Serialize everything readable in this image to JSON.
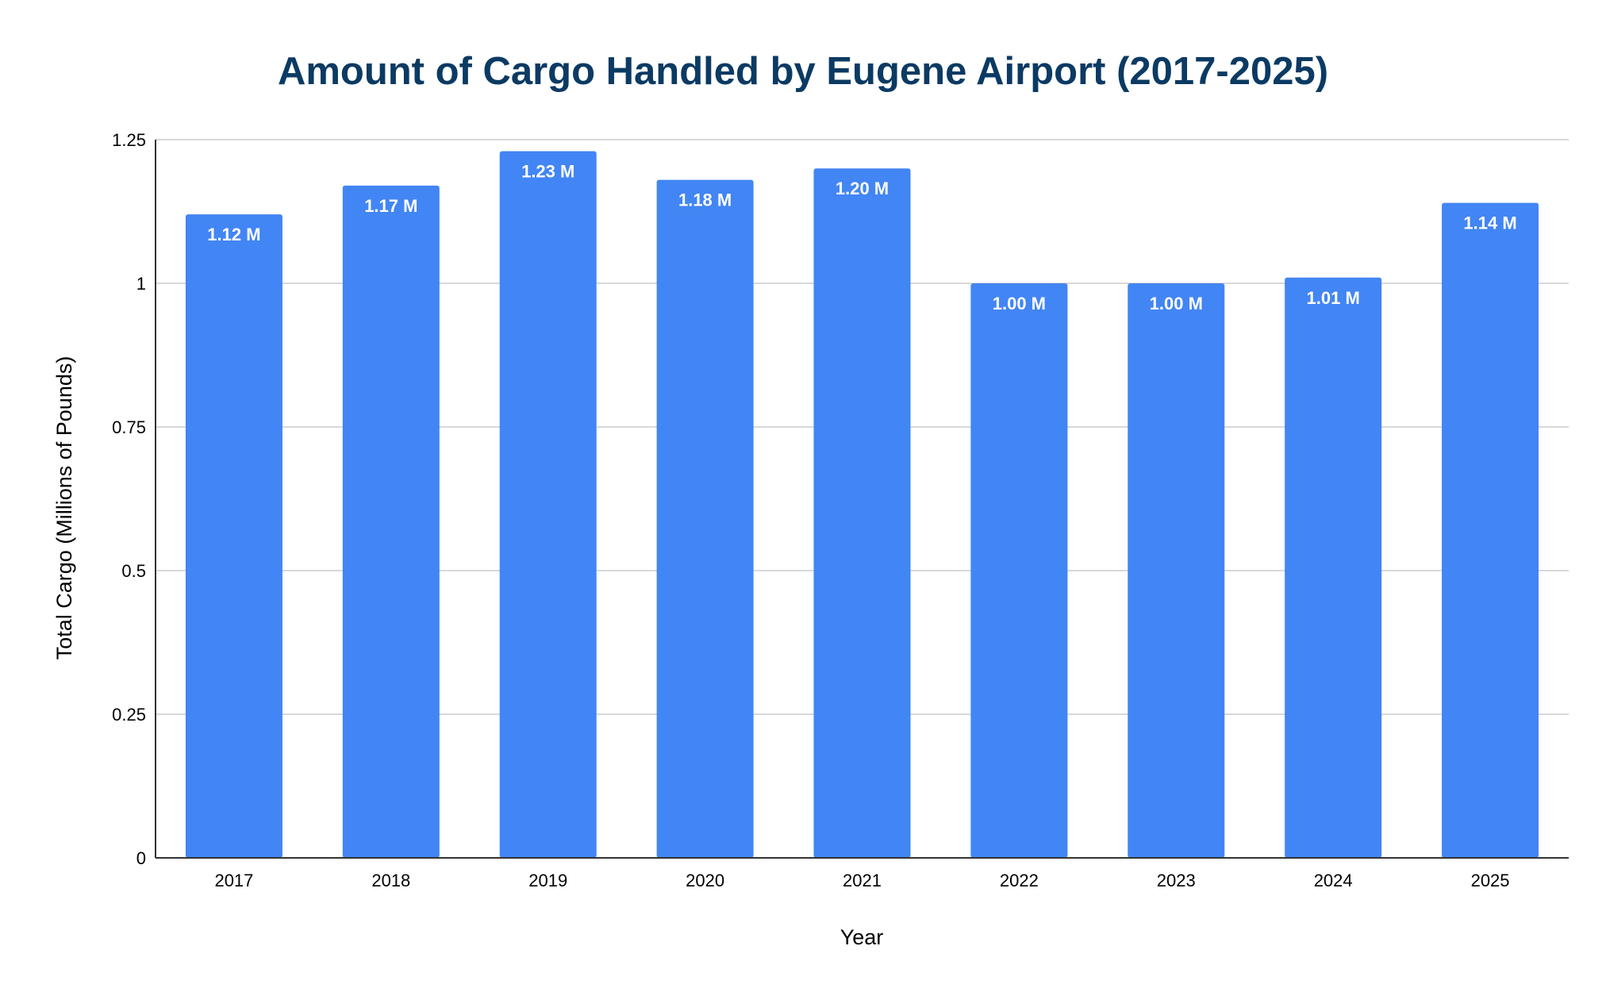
{
  "chart_data": {
    "type": "bar",
    "title": "Amount of Cargo Handled by Eugene Airport (2017-2025)",
    "xlabel": "Year",
    "ylabel": "Total Cargo (Millions of Pounds)",
    "categories": [
      "2017",
      "2018",
      "2019",
      "2020",
      "2021",
      "2022",
      "2023",
      "2024",
      "2025"
    ],
    "values": [
      1.12,
      1.17,
      1.23,
      1.18,
      1.2,
      1.0,
      1.0,
      1.01,
      1.14
    ],
    "data_labels": [
      "1.12 M",
      "1.17 M",
      "1.23 M",
      "1.18 M",
      "1.20 M",
      "1.00 M",
      "1.00 M",
      "1.01 M",
      "1.14 M"
    ],
    "ylim": [
      0,
      1.25
    ],
    "yticks": [
      0,
      0.25,
      0.5,
      0.75,
      1,
      1.25
    ],
    "ytick_labels": [
      "0",
      "0.25",
      "0.5",
      "0.75",
      "1",
      "1.25"
    ],
    "grid": true,
    "legend": "none",
    "colors": {
      "bar": "#4285f4",
      "title": "#0b3a63",
      "grid": "#cccccc",
      "axis": "#333333"
    }
  }
}
